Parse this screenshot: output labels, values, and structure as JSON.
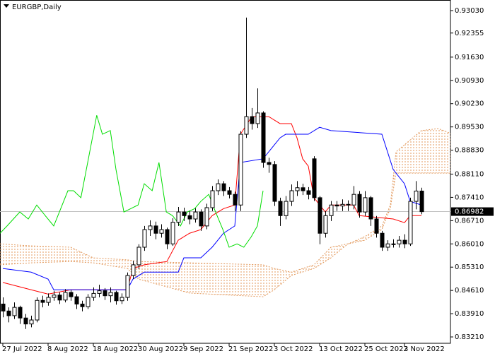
{
  "chart_data": {
    "type": "candlestick",
    "title": "EURGBP,Daily",
    "categories": [
      "27 Jul 2022",
      null,
      null,
      null,
      null,
      null,
      null,
      null,
      "8 Aug 2022",
      null,
      null,
      null,
      null,
      null,
      null,
      null,
      "18 Aug 2022",
      null,
      null,
      null,
      null,
      null,
      null,
      null,
      "30 Aug 2022",
      null,
      null,
      null,
      null,
      null,
      null,
      null,
      "9 Sep 2022",
      null,
      null,
      null,
      null,
      null,
      null,
      null,
      "21 Sep 2022",
      null,
      null,
      null,
      null,
      null,
      null,
      null,
      "3 Oct 2022",
      null,
      null,
      null,
      null,
      null,
      null,
      null,
      "13 Oct 2022",
      null,
      null,
      null,
      null,
      null,
      null,
      null,
      "25 Oct 2022",
      null,
      null,
      null,
      null,
      null,
      null,
      "3 Nov 2022",
      null,
      null,
      null
    ],
    "open": [
      0.842,
      0.8399,
      0.8385,
      0.841,
      0.8378,
      0.836,
      0.8372,
      0.8431,
      0.8425,
      0.844,
      0.8447,
      0.8432,
      0.8455,
      0.8442,
      0.842,
      0.8412,
      0.844,
      0.8452,
      0.846,
      0.8445,
      0.8455,
      0.843,
      0.844,
      0.8506,
      0.8538,
      0.8591,
      0.8644,
      0.8655,
      0.8633,
      0.8644,
      0.8601,
      0.8666,
      0.8697,
      0.8686,
      0.8676,
      0.8697,
      0.8655,
      0.871,
      0.8761,
      0.8782,
      0.8761,
      0.875,
      0.8718,
      0.8931,
      0.8984,
      0.8963,
      0.8995,
      0.8846,
      0.884,
      0.8729,
      0.8686,
      0.8729,
      0.8761,
      0.877,
      0.8761,
      0.8857,
      0.874,
      0.8633,
      0.8686,
      0.8718,
      0.8715,
      0.872,
      0.8718,
      0.875,
      0.8697,
      0.874,
      0.8676,
      0.8633,
      0.8591,
      0.8601,
      0.8601,
      0.8612,
      0.8601,
      0.8729,
      0.876
    ],
    "high": [
      0.844,
      0.841,
      0.8425,
      0.8415,
      0.839,
      0.8385,
      0.844,
      0.8445,
      0.8452,
      0.846,
      0.8455,
      0.8465,
      0.8462,
      0.845,
      0.843,
      0.845,
      0.847,
      0.8478,
      0.8468,
      0.847,
      0.846,
      0.8452,
      0.8515,
      0.855,
      0.86,
      0.8655,
      0.8672,
      0.8668,
      0.866,
      0.865,
      0.8678,
      0.8712,
      0.871,
      0.87,
      0.8708,
      0.8705,
      0.8722,
      0.8775,
      0.8795,
      0.879,
      0.8772,
      0.8758,
      0.894,
      0.9282,
      0.901,
      0.9069,
      0.9,
      0.886,
      0.885,
      0.874,
      0.8745,
      0.878,
      0.879,
      0.8782,
      0.8772,
      0.8865,
      0.8745,
      0.87,
      0.873,
      0.873,
      0.8735,
      0.8732,
      0.8775,
      0.876,
      0.876,
      0.8745,
      0.8685,
      0.864,
      0.8612,
      0.8615,
      0.8625,
      0.863,
      0.874,
      0.879,
      0.877
    ],
    "low": [
      0.838,
      0.8365,
      0.8375,
      0.836,
      0.8345,
      0.835,
      0.8365,
      0.841,
      0.8415,
      0.843,
      0.842,
      0.8425,
      0.843,
      0.8405,
      0.8398,
      0.8405,
      0.843,
      0.844,
      0.8432,
      0.8425,
      0.8418,
      0.842,
      0.843,
      0.8495,
      0.8525,
      0.858,
      0.8625,
      0.8615,
      0.862,
      0.8585,
      0.8595,
      0.8655,
      0.867,
      0.866,
      0.8665,
      0.864,
      0.8645,
      0.87,
      0.8748,
      0.8745,
      0.8738,
      0.87,
      0.87,
      0.892,
      0.8945,
      0.895,
      0.883,
      0.8815,
      0.8715,
      0.8655,
      0.8675,
      0.8715,
      0.8745,
      0.8748,
      0.8735,
      0.873,
      0.86,
      0.862,
      0.867,
      0.87,
      0.87,
      0.87,
      0.8705,
      0.868,
      0.8685,
      0.8655,
      0.862,
      0.858,
      0.858,
      0.859,
      0.859,
      0.8588,
      0.8595,
      0.8705,
      0.869
    ],
    "close": [
      0.8399,
      0.8385,
      0.841,
      0.8378,
      0.836,
      0.8372,
      0.8431,
      0.8425,
      0.844,
      0.8447,
      0.8432,
      0.8455,
      0.8442,
      0.842,
      0.8412,
      0.844,
      0.8452,
      0.846,
      0.8445,
      0.8455,
      0.843,
      0.844,
      0.8506,
      0.8538,
      0.8591,
      0.8644,
      0.8655,
      0.8633,
      0.8644,
      0.8601,
      0.8666,
      0.8697,
      0.8686,
      0.8676,
      0.8697,
      0.8655,
      0.871,
      0.8761,
      0.8782,
      0.8761,
      0.875,
      0.8718,
      0.8931,
      0.8984,
      0.8963,
      0.8995,
      0.8846,
      0.884,
      0.8729,
      0.8686,
      0.8729,
      0.8761,
      0.877,
      0.8761,
      0.875,
      0.874,
      0.8633,
      0.8686,
      0.8718,
      0.8715,
      0.872,
      0.8718,
      0.875,
      0.8697,
      0.874,
      0.8676,
      0.8633,
      0.8591,
      0.8601,
      0.8601,
      0.8612,
      0.8601,
      0.8729,
      0.876,
      0.8698
    ],
    "up_color": "#ffffff",
    "down_color": "#000000",
    "ylim": [
      0.83019,
      0.93349
    ],
    "yticks": [
      {
        "value": 0.9303,
        "label": "0.93030"
      },
      0.92355,
      {
        "value": 0.9163,
        "label": "0.91630"
      },
      {
        "value": 0.9093,
        "label": "0.90930"
      },
      {
        "value": 0.9023,
        "label": "0.90230"
      },
      {
        "value": 0.8953,
        "label": "0.89530"
      },
      {
        "value": 0.8883,
        "label": "0.88830"
      },
      {
        "value": 0.8811,
        "label": "0.88110"
      },
      {
        "value": 0.8741,
        "label": "0.87410"
      },
      {
        "value": 0.8671,
        "label": "0.86710"
      },
      {
        "value": 0.8601,
        "label": "0.86010"
      },
      {
        "value": 0.8531,
        "label": "0.85310"
      },
      {
        "value": 0.8461,
        "label": "0.84610"
      },
      {
        "value": 0.8391,
        "label": "0.83910"
      },
      {
        "value": 0.8321,
        "label": "0.83210"
      }
    ],
    "current_price": 0.86982,
    "lines": [
      {
        "color": "#ff0000",
        "x": [
          0,
          5,
          8,
          12,
          22,
          23,
          25,
          29,
          31,
          33,
          35,
          37,
          39,
          41,
          42,
          44,
          47,
          49,
          51,
          52,
          53,
          54,
          55,
          57,
          58,
          62,
          63,
          69,
          71,
          72,
          74
        ],
        "values": [
          0.8485,
          0.8463,
          0.845,
          0.8463,
          0.8463,
          0.8527,
          0.8538,
          0.8548,
          0.8612,
          0.8633,
          0.8644,
          0.8686,
          0.8707,
          0.8718,
          0.8931,
          0.8984,
          0.8984,
          0.8963,
          0.8963,
          0.892,
          0.8857,
          0.8835,
          0.874,
          0.8697,
          0.8718,
          0.8718,
          0.8686,
          0.8676,
          0.8665,
          0.8686,
          0.8686
        ]
      },
      {
        "color": "#0000ff",
        "x": [
          0,
          5,
          8,
          9,
          22,
          23,
          25,
          31,
          32,
          35,
          37,
          39,
          41,
          42,
          46,
          49,
          50,
          54,
          56,
          58,
          67,
          69,
          71,
          72,
          74
        ],
        "values": [
          0.8527,
          0.8516,
          0.8495,
          0.8463,
          0.8463,
          0.8495,
          0.8516,
          0.8516,
          0.8559,
          0.8559,
          0.8591,
          0.8633,
          0.8655,
          0.8846,
          0.8857,
          0.892,
          0.8931,
          0.8931,
          0.8952,
          0.8942,
          0.8931,
          0.8825,
          0.8782,
          0.8729,
          0.8718
        ]
      },
      {
        "color": "#00dd00",
        "x": [
          -0.5,
          0.75,
          3,
          4.5,
          6,
          7.5,
          9,
          10,
          11.5,
          12.5,
          13.8,
          15,
          16.6,
          17.6,
          19,
          20,
          21.4,
          22.6,
          23.9,
          25,
          26.4,
          27.6,
          28.9,
          30,
          31.4,
          32.6,
          33.9,
          35,
          36.4,
          37.6,
          38.9,
          40,
          41.4,
          42.6,
          43.9,
          45,
          46
        ],
        "values": [
          0.8633,
          0.8655,
          0.8697,
          0.8676,
          0.8718,
          0.8686,
          0.8655,
          0.8697,
          0.8761,
          0.8761,
          0.874,
          0.8846,
          0.8988,
          0.8931,
          0.8942,
          0.8825,
          0.8697,
          0.8707,
          0.8718,
          0.8782,
          0.8761,
          0.8846,
          0.8697,
          0.8686,
          0.8655,
          0.8697,
          0.8707,
          0.8729,
          0.875,
          0.8697,
          0.8644,
          0.8591,
          0.8601,
          0.8591,
          0.8622,
          0.8655,
          0.8761
        ]
      }
    ],
    "cloud": {
      "color": "#e39a5e",
      "x": [
        -0.5,
        5,
        12,
        16,
        22,
        24,
        33,
        46,
        48,
        51,
        55,
        58,
        61,
        64,
        67,
        68.5,
        69.5,
        74,
        77,
        79.5,
        81
      ],
      "senkou_a": [
        0.8538,
        0.8544,
        0.8548,
        0.8544,
        0.8527,
        0.8495,
        0.8453,
        0.8442,
        0.8463,
        0.8506,
        0.8527,
        0.8559,
        0.8601,
        0.8623,
        0.8655,
        0.8718,
        0.8878,
        0.8942,
        0.8948,
        0.8931,
        0.891
      ],
      "senkou_b": [
        0.8601,
        0.8595,
        0.8591,
        0.8559,
        0.8553,
        0.8548,
        0.8544,
        0.8538,
        0.8527,
        0.8516,
        0.8538,
        0.8591,
        0.8601,
        0.8612,
        0.8644,
        0.8708,
        0.8814,
        0.8814,
        0.8814,
        0.8814,
        0.8814
      ]
    }
  }
}
